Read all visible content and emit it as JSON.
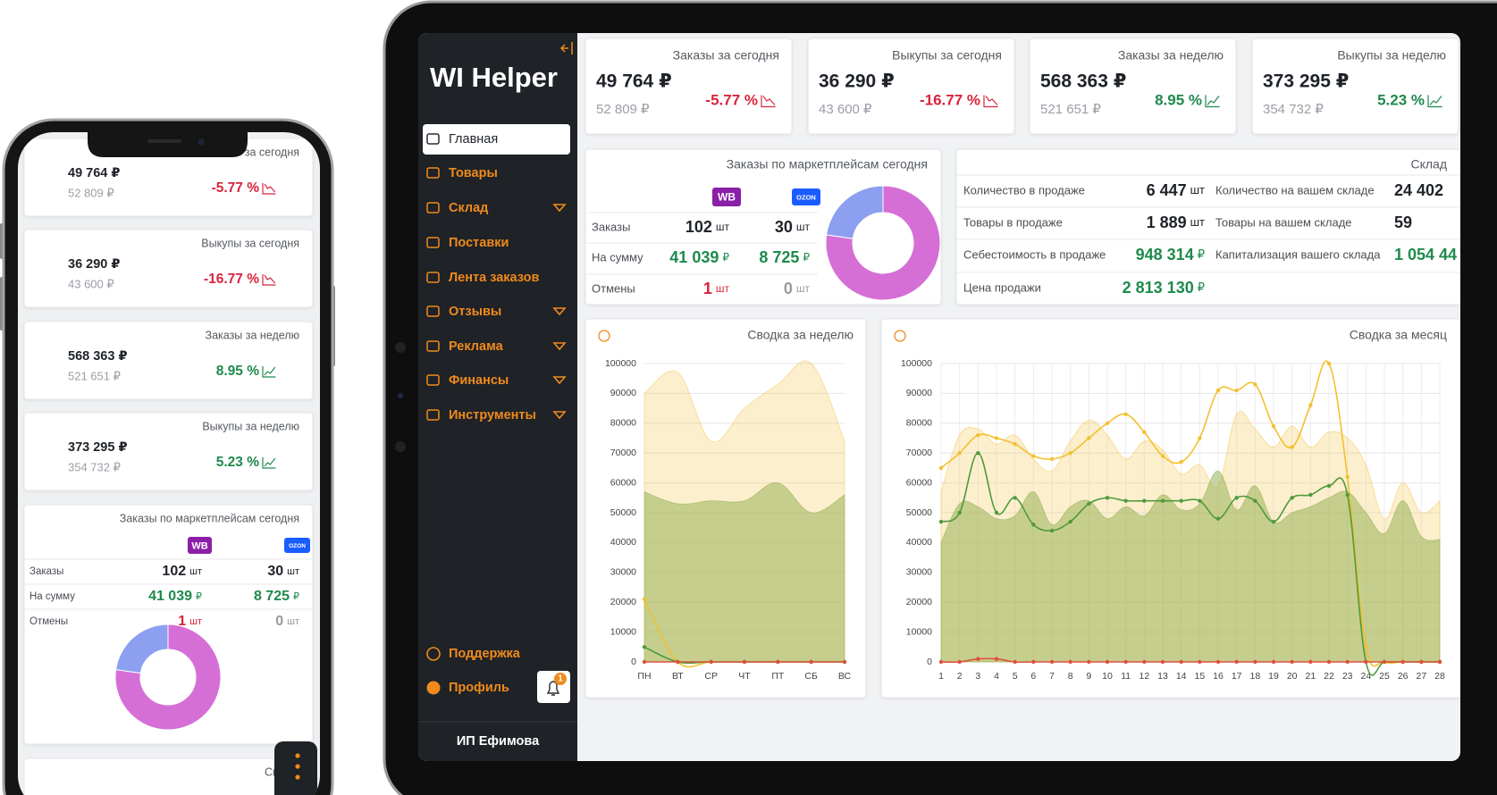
{
  "sidebar": {
    "logo": "WI Helper",
    "menu": [
      {
        "label": "Главная",
        "active": true,
        "submenu": false
      },
      {
        "label": "Товары",
        "active": false,
        "submenu": false
      },
      {
        "label": "Склад",
        "active": false,
        "submenu": true
      },
      {
        "label": "Поставки",
        "active": false,
        "submenu": false
      },
      {
        "label": "Лента заказов",
        "active": false,
        "submenu": false
      },
      {
        "label": "Отзывы",
        "active": false,
        "submenu": true
      },
      {
        "label": "Реклама",
        "active": false,
        "submenu": true
      },
      {
        "label": "Финансы",
        "active": false,
        "submenu": true
      },
      {
        "label": "Инструменты",
        "active": false,
        "submenu": true
      }
    ],
    "support": "Поддержка",
    "profile": "Профиль",
    "notifications": 1,
    "company": "ИП Ефимова"
  },
  "kpis": [
    {
      "title": "Заказы за сегодня",
      "value": "49 764 ₽",
      "previous": "52 809 ₽",
      "change": "-5.77 %",
      "trend": "down"
    },
    {
      "title": "Выкупы за сегодня",
      "value": "36 290 ₽",
      "previous": "43 600 ₽",
      "change": "-16.77 %",
      "trend": "down"
    },
    {
      "title": "Заказы за неделю",
      "value": "568 363 ₽",
      "previous": "521 651 ₽",
      "change": "8.95 %",
      "trend": "up"
    },
    {
      "title": "Выкупы за неделю",
      "value": "373 295 ₽",
      "previous": "354 732 ₽",
      "change": "5.23 %",
      "trend": "up"
    }
  ],
  "marketplaces": {
    "title": "Заказы по маркетплейсам сегодня",
    "columns": [
      "WB",
      "OZON"
    ],
    "colors": [
      "#d56fd6",
      "#8c9ff0"
    ],
    "rows": [
      {
        "label": "Заказы",
        "values": [
          102,
          30
        ],
        "unit": "шт",
        "colors": [
          "#1f2329",
          "#1f2329"
        ]
      },
      {
        "label": "На сумму",
        "values": [
          "41 039",
          "8 725"
        ],
        "unit": "₽",
        "colors": [
          "#1e8a4c",
          "#1e8a4c"
        ]
      },
      {
        "label": "Отмены",
        "values": [
          1,
          0
        ],
        "unit": "шт",
        "colors": [
          "#d8243c",
          "#9a9a9a"
        ]
      }
    ]
  },
  "stock": {
    "title": "Склад",
    "columns": [
      [
        {
          "label": "Количество в продаже",
          "value": "6 447",
          "unit": "шт",
          "color": "#1f2329"
        },
        {
          "label": "Товары в продаже",
          "value": "1 889",
          "unit": "шт",
          "color": "#1f2329"
        },
        {
          "label": "Себестоимость в продаже",
          "value": "948 314",
          "unit": "₽",
          "color": "#1e8a4c"
        },
        {
          "label": "Цена продажи",
          "value": "2 813 130",
          "unit": "₽",
          "color": "#1e8a4c"
        }
      ],
      [
        {
          "label": "Количество на вашем складе",
          "value": "24 402",
          "color": "#1f2329"
        },
        {
          "label": "Товары на вашем складе",
          "value": "59",
          "color": "#1f2329"
        },
        {
          "label": "Капитализация вашего склада",
          "value": "1 054 44",
          "color": "#1e8a4c"
        }
      ]
    ]
  },
  "chart_data": [
    {
      "type": "line",
      "title": "Сводка за неделю",
      "categories": [
        "ПН",
        "ВТ",
        "СР",
        "ЧТ",
        "ПТ",
        "СБ",
        "ВС"
      ],
      "ylim": [
        0,
        100000
      ],
      "yticks": [
        0,
        10000,
        20000,
        30000,
        40000,
        50000,
        60000,
        70000,
        80000,
        90000,
        100000
      ],
      "grid": true,
      "series": [
        {
          "color": "#f6c64e",
          "fill": true,
          "values": [
            90000,
            97000,
            74000,
            85000,
            93000,
            100000,
            74000
          ]
        },
        {
          "color": "#8fae4e",
          "fill": true,
          "values": [
            57000,
            53000,
            54000,
            54000,
            60000,
            50000,
            56000
          ]
        },
        {
          "color": "#f2c12e",
          "fill": false,
          "values": [
            21000,
            0,
            0,
            0,
            0,
            0,
            0
          ]
        },
        {
          "color": "#4f9a3c",
          "fill": false,
          "values": [
            5000,
            0,
            0,
            0,
            0,
            0,
            0
          ]
        },
        {
          "color": "#e0503c",
          "fill": false,
          "values": [
            0,
            0,
            0,
            0,
            0,
            0,
            0
          ]
        }
      ]
    },
    {
      "type": "line",
      "title": "Сводка за месяц",
      "x": [
        1,
        2,
        3,
        4,
        5,
        6,
        7,
        8,
        9,
        10,
        11,
        12,
        13,
        14,
        15,
        16,
        17,
        18,
        19,
        20,
        21,
        22,
        23,
        24,
        25,
        26,
        27,
        28
      ],
      "xlim": [
        1,
        28
      ],
      "xticks": [
        1,
        2,
        3,
        4,
        5,
        6,
        7,
        8,
        9,
        10,
        11,
        12,
        13,
        14,
        15,
        16,
        17,
        18,
        19,
        20,
        21,
        22,
        23,
        24,
        25,
        26,
        27,
        28
      ],
      "ylim": [
        0,
        100000
      ],
      "yticks": [
        0,
        10000,
        20000,
        30000,
        40000,
        50000,
        60000,
        70000,
        80000,
        90000,
        100000
      ],
      "grid": true,
      "series": [
        {
          "color": "#f6c64e",
          "fill": true,
          "values": [
            57000,
            76000,
            78000,
            73000,
            76000,
            68000,
            64000,
            74000,
            81000,
            76000,
            68000,
            74000,
            71000,
            63000,
            66000,
            59000,
            83000,
            78000,
            72000,
            79000,
            72000,
            77000,
            75000,
            66000,
            48000,
            60000,
            50000,
            54000
          ]
        },
        {
          "color": "#8fae4e",
          "fill": true,
          "values": [
            40000,
            53000,
            52000,
            48000,
            49000,
            57000,
            46000,
            52000,
            54000,
            48000,
            52000,
            49000,
            56000,
            51000,
            53000,
            64000,
            51000,
            59000,
            47000,
            50000,
            52000,
            55000,
            57000,
            50000,
            43000,
            54000,
            42000,
            41000
          ]
        },
        {
          "color": "#f2c12e",
          "fill": false,
          "values": [
            65000,
            70000,
            76000,
            75000,
            73000,
            69000,
            68000,
            70000,
            75000,
            80000,
            83000,
            77000,
            69000,
            67000,
            75000,
            91000,
            91000,
            93000,
            79000,
            72000,
            86000,
            100000,
            62000,
            5000,
            0,
            0,
            0,
            0
          ]
        },
        {
          "color": "#4f9a3c",
          "fill": false,
          "values": [
            47000,
            50000,
            70000,
            50000,
            55000,
            46000,
            44000,
            47000,
            53000,
            55000,
            54000,
            54000,
            54000,
            54000,
            54000,
            48000,
            55000,
            54000,
            47000,
            55000,
            56000,
            59000,
            56000,
            0,
            0,
            0,
            0,
            0
          ]
        },
        {
          "color": "#e0503c",
          "fill": false,
          "values": [
            0,
            0,
            1000,
            1000,
            0,
            0,
            0,
            0,
            0,
            0,
            0,
            0,
            0,
            0,
            0,
            0,
            0,
            0,
            0,
            0,
            0,
            0,
            0,
            0,
            0,
            0,
            0,
            0
          ]
        }
      ]
    }
  ]
}
